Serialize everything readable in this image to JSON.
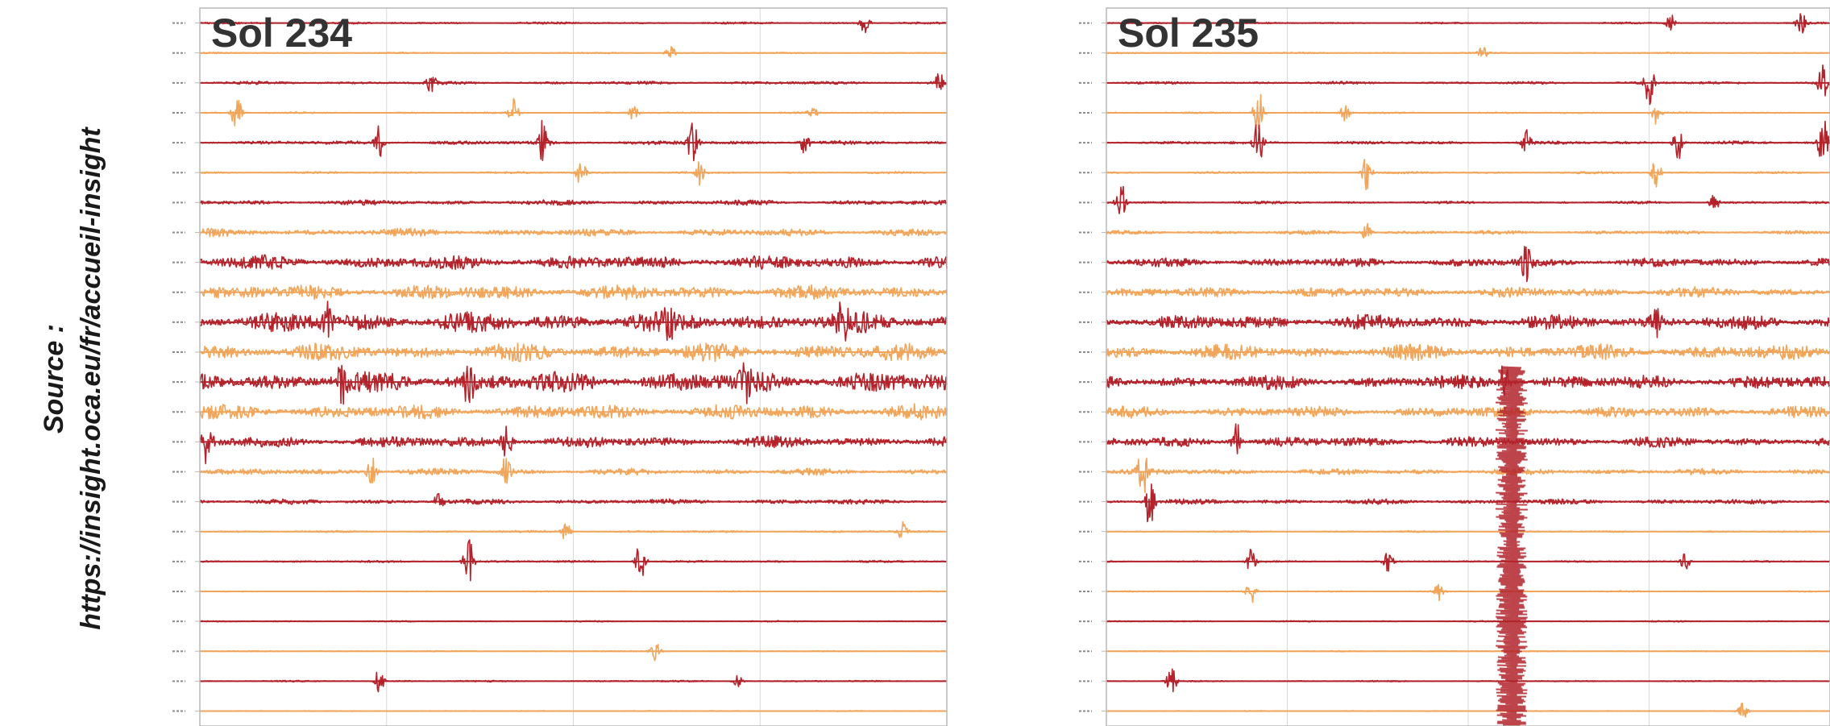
{
  "source": {
    "line1": "Source :",
    "line2": "https://insight.oca.eu/fr/accueil-insight"
  },
  "colors": {
    "dark_trace": "#b3232b",
    "light_trace": "#f0a55a",
    "grid": "#d9d9d9",
    "frame": "#b8b8b8",
    "tick_label": "#8a8a8a",
    "title": "#333333"
  },
  "chart_data": [
    {
      "type": "line",
      "title": "Sol 234",
      "description_of_series": "24 stacked seismogram traces, alternating dark red and light orange; amplitude in relative units 0-1 per band",
      "series": [
        {
          "color": "dark",
          "amplitude": 0.08,
          "events": [
            [
              0.89,
              0.35
            ]
          ]
        },
        {
          "color": "light",
          "amplitude": 0.05,
          "events": [
            [
              0.63,
              0.25
            ]
          ]
        },
        {
          "color": "dark",
          "amplitude": 0.12,
          "events": [
            [
              0.31,
              0.3
            ],
            [
              0.99,
              0.3
            ]
          ]
        },
        {
          "color": "light",
          "amplitude": 0.06,
          "events": [
            [
              0.05,
              0.9
            ],
            [
              0.42,
              0.5
            ],
            [
              0.58,
              0.25
            ],
            [
              0.82,
              0.2
            ]
          ]
        },
        {
          "color": "dark",
          "amplitude": 0.15,
          "events": [
            [
              0.24,
              0.6
            ],
            [
              0.46,
              1.0
            ],
            [
              0.66,
              0.8
            ],
            [
              0.81,
              0.35
            ]
          ]
        },
        {
          "color": "light",
          "amplitude": 0.08,
          "events": [
            [
              0.51,
              0.4
            ],
            [
              0.67,
              0.4
            ]
          ]
        },
        {
          "color": "dark",
          "amplitude": 0.2,
          "events": []
        },
        {
          "color": "light",
          "amplitude": 0.3,
          "events": []
        },
        {
          "color": "dark",
          "amplitude": 0.55,
          "events": []
        },
        {
          "color": "light",
          "amplitude": 0.6,
          "events": []
        },
        {
          "color": "dark",
          "amplitude": 0.8,
          "events": [
            [
              0.17,
              0.5
            ],
            [
              0.63,
              0.6
            ],
            [
              0.86,
              0.5
            ]
          ]
        },
        {
          "color": "light",
          "amplitude": 0.7,
          "events": []
        },
        {
          "color": "dark",
          "amplitude": 0.85,
          "events": [
            [
              0.19,
              0.6
            ],
            [
              0.36,
              0.7
            ],
            [
              0.73,
              0.5
            ]
          ]
        },
        {
          "color": "light",
          "amplitude": 0.6,
          "events": []
        },
        {
          "color": "dark",
          "amplitude": 0.45,
          "events": [
            [
              0.01,
              0.7
            ],
            [
              0.41,
              0.8
            ]
          ]
        },
        {
          "color": "light",
          "amplitude": 0.25,
          "events": [
            [
              0.23,
              0.5
            ],
            [
              0.41,
              0.5
            ]
          ]
        },
        {
          "color": "dark",
          "amplitude": 0.2,
          "events": [
            [
              0.32,
              0.3
            ]
          ]
        },
        {
          "color": "light",
          "amplitude": 0.08,
          "events": [
            [
              0.49,
              0.3
            ],
            [
              0.94,
              0.3
            ]
          ]
        },
        {
          "color": "dark",
          "amplitude": 0.08,
          "events": [
            [
              0.36,
              0.9
            ],
            [
              0.59,
              0.8
            ]
          ]
        },
        {
          "color": "light",
          "amplitude": 0.04,
          "events": []
        },
        {
          "color": "dark",
          "amplitude": 0.05,
          "events": []
        },
        {
          "color": "light",
          "amplitude": 0.04,
          "events": [
            [
              0.61,
              0.3
            ]
          ]
        },
        {
          "color": "dark",
          "amplitude": 0.06,
          "events": [
            [
              0.24,
              0.4
            ],
            [
              0.72,
              0.2
            ]
          ]
        },
        {
          "color": "light",
          "amplitude": 0.04,
          "events": []
        }
      ],
      "grid": true
    },
    {
      "type": "line",
      "title": "Sol 235",
      "description_of_series": "24 stacked seismogram traces, alternating dark red and light orange; amplitude in relative units 0-1 per band",
      "series": [
        {
          "color": "dark",
          "amplitude": 0.06,
          "events": [
            [
              0.78,
              0.3
            ],
            [
              0.96,
              0.4
            ]
          ]
        },
        {
          "color": "light",
          "amplitude": 0.05,
          "events": [
            [
              0.52,
              0.2
            ]
          ]
        },
        {
          "color": "dark",
          "amplitude": 0.1,
          "events": [
            [
              0.75,
              0.9
            ],
            [
              0.99,
              0.6
            ]
          ]
        },
        {
          "color": "light",
          "amplitude": 0.06,
          "events": [
            [
              0.21,
              0.9
            ],
            [
              0.33,
              0.3
            ],
            [
              0.76,
              0.4
            ]
          ]
        },
        {
          "color": "dark",
          "amplitude": 0.12,
          "events": [
            [
              0.21,
              0.9
            ],
            [
              0.58,
              0.4
            ],
            [
              0.79,
              0.6
            ],
            [
              0.99,
              1.0
            ]
          ]
        },
        {
          "color": "light",
          "amplitude": 0.08,
          "events": [
            [
              0.36,
              0.6
            ],
            [
              0.76,
              0.5
            ]
          ]
        },
        {
          "color": "dark",
          "amplitude": 0.1,
          "events": [
            [
              0.02,
              0.8
            ],
            [
              0.84,
              0.3
            ]
          ]
        },
        {
          "color": "light",
          "amplitude": 0.15,
          "events": [
            [
              0.36,
              0.3
            ]
          ]
        },
        {
          "color": "dark",
          "amplitude": 0.35,
          "events": [
            [
              0.58,
              0.6
            ]
          ]
        },
        {
          "color": "light",
          "amplitude": 0.4,
          "events": []
        },
        {
          "color": "dark",
          "amplitude": 0.6,
          "events": [
            [
              0.76,
              0.6
            ]
          ]
        },
        {
          "color": "light",
          "amplitude": 0.6,
          "events": []
        },
        {
          "color": "dark",
          "amplitude": 0.55,
          "events": [
            [
              0.55,
              0.7
            ]
          ]
        },
        {
          "color": "light",
          "amplitude": 0.45,
          "events": []
        },
        {
          "color": "dark",
          "amplitude": 0.4,
          "events": [
            [
              0.18,
              0.6
            ]
          ]
        },
        {
          "color": "light",
          "amplitude": 0.25,
          "events": [
            [
              0.05,
              0.8
            ]
          ]
        },
        {
          "color": "dark",
          "amplitude": 0.2,
          "events": [
            [
              0.06,
              0.9
            ]
          ]
        },
        {
          "color": "light",
          "amplitude": 0.06,
          "events": []
        },
        {
          "color": "dark",
          "amplitude": 0.06,
          "events": [
            [
              0.2,
              0.4
            ],
            [
              0.39,
              0.4
            ],
            [
              0.8,
              0.3
            ]
          ]
        },
        {
          "color": "light",
          "amplitude": 0.05,
          "events": [
            [
              0.2,
              0.4
            ],
            [
              0.46,
              0.3
            ]
          ]
        },
        {
          "color": "dark",
          "amplitude": 0.05,
          "events": []
        },
        {
          "color": "light",
          "amplitude": 0.04,
          "events": []
        },
        {
          "color": "dark",
          "amplitude": 0.05,
          "events": [
            [
              0.09,
              0.5
            ]
          ]
        },
        {
          "color": "light",
          "amplitude": 0.04,
          "events": [
            [
              0.88,
              0.3
            ]
          ]
        }
      ],
      "grid": true,
      "vertical_burst": {
        "x": 0.56,
        "from_trace": 12,
        "to_trace": 23
      }
    }
  ]
}
